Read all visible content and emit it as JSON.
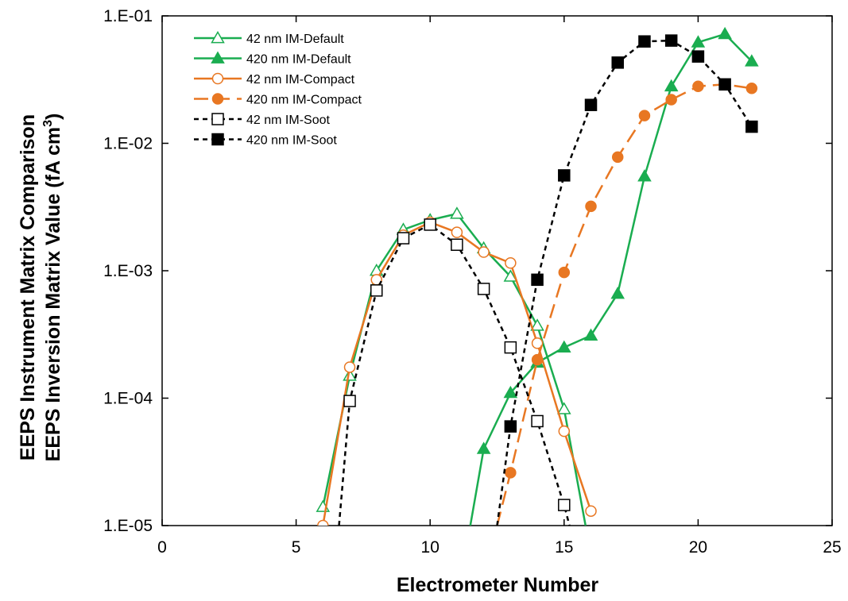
{
  "chart_data": {
    "type": "line",
    "title": "",
    "xlabel": "Electrometer Number",
    "ylabel_lines": [
      "EEPS Instrument Matrix Comparison",
      "EEPS Inversion Matrix Value (fA cm",
      "3",
      ")"
    ],
    "xlim": [
      0,
      25
    ],
    "ylim": [
      1e-05,
      0.1
    ],
    "yscale": "log",
    "x_ticks": [
      0,
      5,
      10,
      15,
      20,
      25
    ],
    "x_tick_labels": [
      "0",
      "5",
      "10",
      "15",
      "20",
      "25"
    ],
    "y_ticks": [
      1e-05,
      0.0001,
      0.001,
      0.01,
      0.1
    ],
    "y_tick_labels": [
      "1.E-05",
      "1.E-04",
      "1.E-03",
      "1.E-02",
      "1.E-01"
    ],
    "grid": false,
    "legend_position": "top-left",
    "series": [
      {
        "name": "42 nm IM-Default",
        "color": "#1aad50",
        "marker": "triangle",
        "filled": false,
        "dash": "solid",
        "x": [
          6,
          7,
          8,
          9,
          10,
          11,
          12,
          13,
          14,
          15,
          15.8
        ],
        "y": [
          1.4e-05,
          0.00015,
          0.001,
          0.0021,
          0.0025,
          0.0028,
          0.0015,
          0.0009,
          0.00037,
          8.2e-05,
          1e-05
        ]
      },
      {
        "name": "420 nm IM-Default",
        "color": "#1aad50",
        "marker": "triangle",
        "filled": true,
        "dash": "solid",
        "x": [
          11.5,
          12,
          13,
          14,
          15,
          16,
          17,
          18,
          19,
          20,
          21,
          22
        ],
        "y": [
          1e-05,
          4e-05,
          0.00011,
          0.00019,
          0.00025,
          0.00031,
          0.00066,
          0.0055,
          0.028,
          0.062,
          0.072,
          0.044
        ]
      },
      {
        "name": "42 nm IM-Compact",
        "color": "#e87722",
        "marker": "circle",
        "filled": false,
        "dash": "solid",
        "x": [
          6,
          7,
          8,
          9,
          10,
          11,
          12,
          13,
          14,
          15,
          16
        ],
        "y": [
          1e-05,
          0.000175,
          0.00085,
          0.0019,
          0.0024,
          0.002,
          0.0014,
          0.00115,
          0.00027,
          5.5e-05,
          1.3e-05
        ]
      },
      {
        "name": "420 nm IM-Compact",
        "color": "#e87722",
        "marker": "circle",
        "filled": true,
        "dash": "long-dash",
        "x": [
          12.5,
          13,
          14,
          15,
          16,
          17,
          18,
          19,
          20,
          21,
          22
        ],
        "y": [
          1e-05,
          2.6e-05,
          0.0002,
          0.00097,
          0.0032,
          0.0078,
          0.0165,
          0.022,
          0.028,
          0.029,
          0.027
        ]
      },
      {
        "name": "42 nm IM-Soot",
        "color": "#000000",
        "marker": "square",
        "filled": false,
        "dash": "short-dash",
        "x": [
          6.6,
          7,
          8,
          9,
          10,
          11,
          12,
          13,
          14,
          15,
          15.2
        ],
        "y": [
          1e-05,
          9.5e-05,
          0.0007,
          0.0018,
          0.0023,
          0.0016,
          0.00072,
          0.00025,
          6.6e-05,
          1.45e-05,
          1e-05
        ]
      },
      {
        "name": "420 nm IM-Soot",
        "color": "#000000",
        "marker": "square",
        "filled": true,
        "dash": "short-dash",
        "x": [
          12.5,
          13,
          14,
          15,
          16,
          17,
          18,
          19,
          20,
          21,
          22
        ],
        "y": [
          1e-05,
          6e-05,
          0.00085,
          0.0056,
          0.02,
          0.043,
          0.063,
          0.064,
          0.048,
          0.029,
          0.0135
        ]
      }
    ]
  }
}
